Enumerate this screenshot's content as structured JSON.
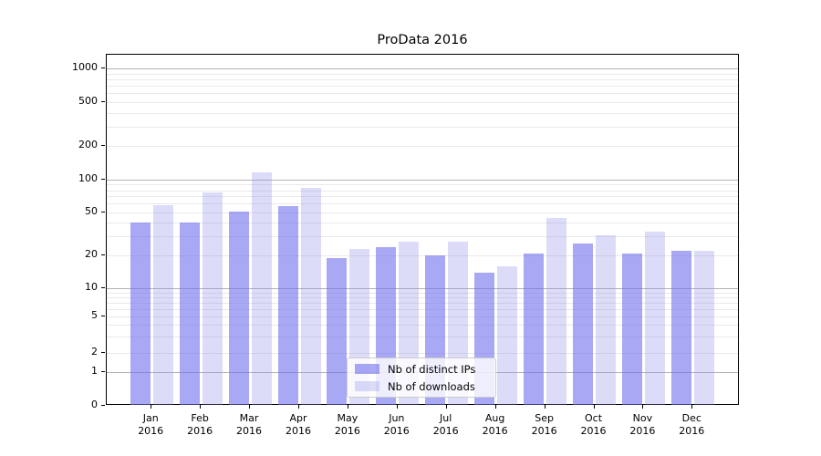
{
  "title": "ProData 2016",
  "colors": {
    "ips_fill": "rgba(110,110,237,0.6)",
    "ips_hex": "#a8a8f2",
    "downloads_fill": "rgba(138,138,235,0.3)",
    "downloads_hex": "#dcdcf8",
    "grid_major": "#b3b3b3",
    "grid_minor": "#e9e9e9",
    "axis": "#000000",
    "legend_border": "#cccccc"
  },
  "axes": {
    "y_tick_labels": [
      "0",
      "1",
      "2",
      "5",
      "10",
      "20",
      "50",
      "100",
      "200",
      "500",
      "1000"
    ],
    "x_tick_months": [
      "Jan",
      "Feb",
      "Mar",
      "Apr",
      "May",
      "Jun",
      "Jul",
      "Aug",
      "Sep",
      "Oct",
      "Nov",
      "Dec"
    ],
    "x_tick_year": "2016"
  },
  "legend": {
    "items": [
      {
        "label": "Nb of distinct IPs"
      },
      {
        "label": "Nb of downloads"
      }
    ]
  },
  "chart_data": {
    "type": "bar",
    "title": "ProData 2016",
    "categories": [
      "Jan 2016",
      "Feb 2016",
      "Mar 2016",
      "Apr 2016",
      "May 2016",
      "Jun 2016",
      "Jul 2016",
      "Aug 2016",
      "Sep 2016",
      "Oct 2016",
      "Nov 2016",
      "Dec 2016"
    ],
    "series": [
      {
        "name": "Nb of distinct IPs",
        "color": "#a8a8f2",
        "values": [
          40,
          40,
          51,
          57,
          19,
          24,
          20,
          14,
          21,
          26,
          21,
          22
        ]
      },
      {
        "name": "Nb of downloads",
        "color": "#dcdcf8",
        "values": [
          58,
          77,
          116,
          84,
          23,
          27,
          27,
          16,
          44,
          31,
          33,
          22
        ]
      }
    ],
    "xlabel": "",
    "ylabel": "",
    "yscale": "symlog",
    "y_ticks": [
      0,
      1,
      2,
      5,
      10,
      20,
      50,
      100,
      200,
      500,
      1000
    ],
    "ylim": [
      0,
      1300
    ],
    "grid": true,
    "grid_minor": true,
    "legend_position": "lower center"
  }
}
